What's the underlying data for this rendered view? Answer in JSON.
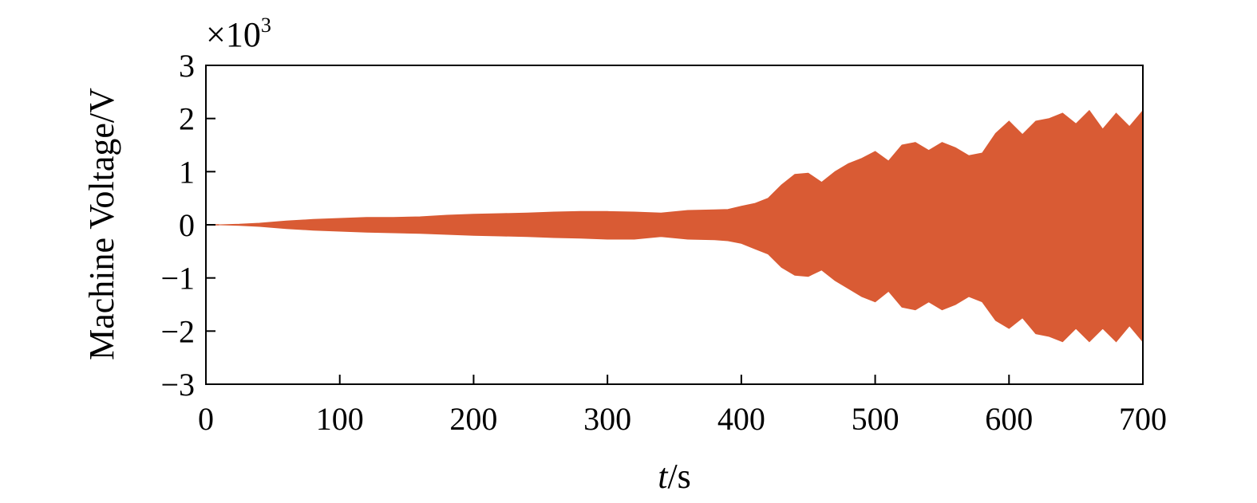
{
  "chart_data": {
    "type": "area",
    "title": "",
    "xlabel": {
      "italic": "t",
      "rest": "/s"
    },
    "ylabel": "Machine Voltage/V",
    "y_multiplier": {
      "base": "×10",
      "exp": "3"
    },
    "xlim": [
      0,
      700
    ],
    "ylim": [
      -3,
      3
    ],
    "x_ticks": [
      0,
      100,
      200,
      300,
      400,
      500,
      600,
      700
    ],
    "y_ticks": [
      3,
      2,
      1,
      0,
      -1,
      -2,
      -3
    ],
    "y_tick_labels": [
      "3",
      "2",
      "1",
      "0",
      "−1",
      "−2",
      "−3"
    ],
    "grid": false,
    "series_color": "#d95b34",
    "series": [
      {
        "upper_envelope": {
          "x": [
            10,
            25,
            40,
            60,
            80,
            100,
            120,
            140,
            160,
            180,
            200,
            220,
            240,
            260,
            280,
            300,
            320,
            340,
            360,
            380,
            390,
            400,
            410,
            420,
            430,
            440,
            450,
            460,
            470,
            480,
            490,
            500,
            510,
            520,
            530,
            540,
            550,
            560,
            570,
            580,
            590,
            600,
            610,
            620,
            630,
            640,
            650,
            660,
            670,
            680,
            690,
            700
          ],
          "y": [
            0,
            0.01,
            0.03,
            0.07,
            0.1,
            0.12,
            0.14,
            0.14,
            0.15,
            0.18,
            0.2,
            0.21,
            0.22,
            0.24,
            0.25,
            0.25,
            0.24,
            0.22,
            0.27,
            0.28,
            0.29,
            0.35,
            0.4,
            0.5,
            0.75,
            0.95,
            0.97,
            0.8,
            1.0,
            1.15,
            1.25,
            1.38,
            1.2,
            1.5,
            1.55,
            1.4,
            1.55,
            1.45,
            1.3,
            1.35,
            1.72,
            1.95,
            1.7,
            1.95,
            2.0,
            2.1,
            1.9,
            2.15,
            1.8,
            2.1,
            1.85,
            2.15
          ]
        },
        "lower_envelope": {
          "x": [
            10,
            25,
            40,
            60,
            80,
            100,
            120,
            140,
            160,
            180,
            200,
            220,
            240,
            260,
            280,
            300,
            320,
            340,
            360,
            380,
            390,
            400,
            410,
            420,
            430,
            440,
            450,
            460,
            470,
            480,
            490,
            500,
            510,
            520,
            530,
            540,
            550,
            560,
            570,
            580,
            590,
            600,
            610,
            620,
            630,
            640,
            650,
            660,
            670,
            680,
            690,
            700
          ],
          "y": [
            0,
            -0.01,
            -0.03,
            -0.07,
            -0.1,
            -0.12,
            -0.14,
            -0.15,
            -0.16,
            -0.18,
            -0.2,
            -0.21,
            -0.22,
            -0.24,
            -0.25,
            -0.27,
            -0.27,
            -0.22,
            -0.27,
            -0.28,
            -0.3,
            -0.35,
            -0.45,
            -0.55,
            -0.8,
            -0.95,
            -0.97,
            -0.85,
            -1.05,
            -1.2,
            -1.35,
            -1.45,
            -1.25,
            -1.55,
            -1.6,
            -1.45,
            -1.6,
            -1.5,
            -1.35,
            -1.45,
            -1.8,
            -1.95,
            -1.75,
            -2.05,
            -2.1,
            -2.2,
            -1.95,
            -2.2,
            -1.95,
            -2.2,
            -1.9,
            -2.2
          ]
        }
      }
    ]
  }
}
